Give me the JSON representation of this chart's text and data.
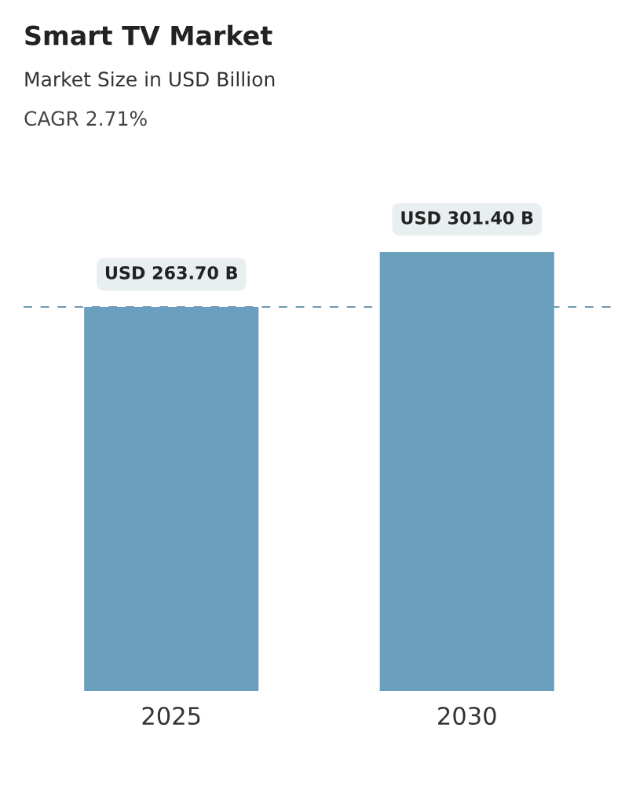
{
  "chart_data": {
    "type": "bar",
    "title": "Smart TV Market",
    "subtitle": "Market Size in USD Billion",
    "annotations": [
      "CAGR 2.71%"
    ],
    "categories": [
      "2025",
      "2030"
    ],
    "values": [
      263.7,
      301.4
    ],
    "value_labels": [
      "USD 263.70 B",
      "USD 301.40 B"
    ],
    "colors": [
      "#6a9fbe",
      "#6a9fbe"
    ],
    "ref_lines": [
      {
        "axis": "y",
        "value": 263.7,
        "color": "#5a88a6",
        "line_style": "dashed"
      }
    ],
    "grid": false,
    "legend": false,
    "tick_labels": "x"
  }
}
